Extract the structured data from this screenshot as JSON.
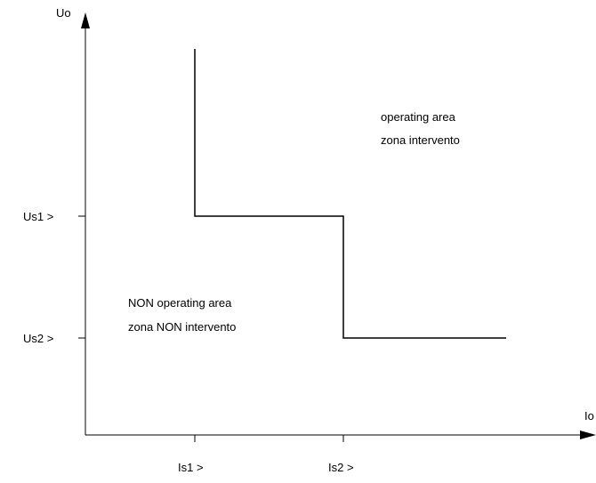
{
  "axes": {
    "y_label": "Uo",
    "x_label": "Io"
  },
  "thresholds": {
    "us1": "Us1 >",
    "us2": "Us2 >",
    "is1": "Is1 >",
    "is2": "Is2 >"
  },
  "regions": {
    "operating_line1": "operating area",
    "operating_line2": "zona intervento",
    "non_operating_line1": "NON operating area",
    "non_operating_line2": "zona NON intervento"
  },
  "colors": {
    "stroke": "#000000",
    "background": "#ffffff"
  }
}
